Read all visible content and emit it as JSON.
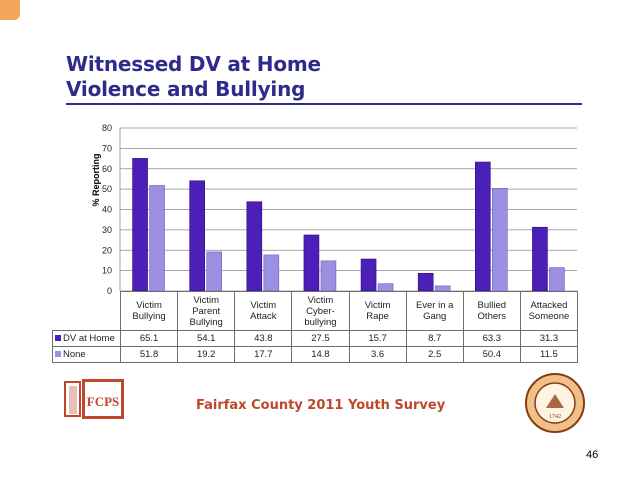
{
  "slide": {
    "title_line1": "Witnessed DV at Home",
    "title_line2": "Violence and Bullying",
    "footer": "Fairfax County 2011 Youth Survey",
    "page_number": "46",
    "logo_text": "FCPS",
    "seal_year": "1742"
  },
  "chart_data": {
    "type": "bar",
    "title": "",
    "ylabel": "% Reporting",
    "xlabel": "",
    "ylim": [
      0,
      80
    ],
    "yticks": [
      0,
      10,
      20,
      30,
      40,
      50,
      60,
      70,
      80
    ],
    "grid": true,
    "categories": [
      "Victim Bullying",
      "Victim Parent Bullying",
      "Victim Attack",
      "Victim Cyber-bullying",
      "Victim Rape",
      "Ever in a Gang",
      "Bullied Others",
      "Attacked Someone"
    ],
    "category_lines": [
      [
        "Victim",
        "Bullying"
      ],
      [
        "Victim",
        "Parent",
        "Bullying"
      ],
      [
        "Victim",
        "Attack"
      ],
      [
        "Victim",
        "Cyber-",
        "bullying"
      ],
      [
        "Victim",
        "Rape"
      ],
      [
        "Ever in a",
        "Gang"
      ],
      [
        "Bullied",
        "Others"
      ],
      [
        "Attacked",
        "Someone"
      ]
    ],
    "series": [
      {
        "name": "DV at Home",
        "values": [
          65.1,
          54.1,
          43.8,
          27.5,
          15.7,
          8.7,
          63.3,
          31.3
        ],
        "color": "#4b1fb8"
      },
      {
        "name": "None",
        "values": [
          51.8,
          19.2,
          17.7,
          14.8,
          3.6,
          2.5,
          50.4,
          11.5
        ],
        "color": "#9b8fe0"
      }
    ],
    "legend_position": "data-table"
  }
}
